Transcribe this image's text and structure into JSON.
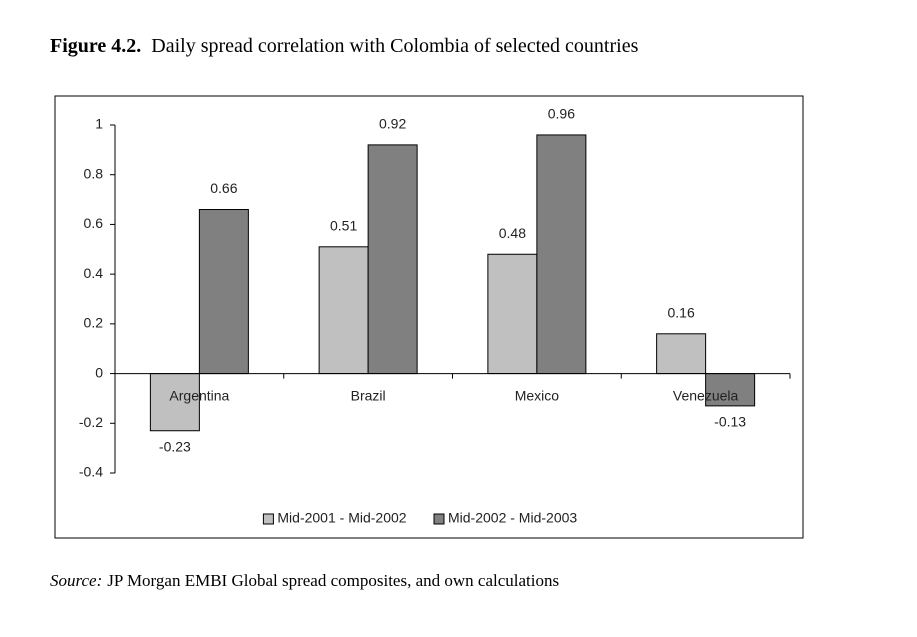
{
  "chart_data": {
    "type": "bar",
    "title_label": "Figure 4.2.",
    "title": "Daily spread correlation with Colombia of selected countries",
    "categories": [
      "Argentina",
      "Brazil",
      "Mexico",
      "Venezuela"
    ],
    "series": [
      {
        "name": "Mid-2001 - Mid-2002",
        "color": "#c0c0c0",
        "values": [
          -0.23,
          0.51,
          0.48,
          0.16
        ]
      },
      {
        "name": "Mid-2002 - Mid-2003",
        "color": "#808080",
        "values": [
          0.66,
          0.92,
          0.96,
          -0.13
        ]
      }
    ],
    "ylim": [
      -0.4,
      1
    ],
    "yticks": [
      -0.4,
      -0.2,
      0,
      0.2,
      0.4,
      0.6,
      0.8,
      1
    ],
    "grid": false,
    "legend": "bottom",
    "source_label": "Source:",
    "source": "JP Morgan EMBI Global spread composites, and own calculations"
  }
}
